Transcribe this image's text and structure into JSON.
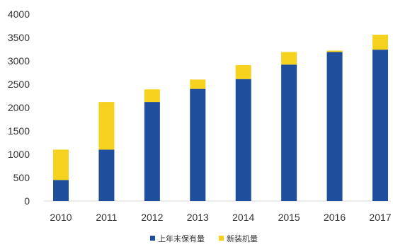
{
  "chart_data": {
    "type": "bar",
    "stacked": true,
    "categories": [
      "2010",
      "2011",
      "2012",
      "2013",
      "2014",
      "2015",
      "2016",
      "2017"
    ],
    "series": [
      {
        "name": "上年末保有量",
        "color": "#1f4e9c",
        "values": [
          450,
          1100,
          2120,
          2400,
          2610,
          2920,
          3190,
          3240
        ]
      },
      {
        "name": "新装机量",
        "color": "#f6d21e",
        "values": [
          650,
          1020,
          270,
          200,
          300,
          270,
          30,
          320
        ]
      }
    ],
    "ylim": [
      0,
      4000
    ],
    "yticks": [
      0,
      500,
      1000,
      1500,
      2000,
      2500,
      3000,
      3500,
      4000
    ],
    "grid": false,
    "legend_position": "bottom-center"
  }
}
